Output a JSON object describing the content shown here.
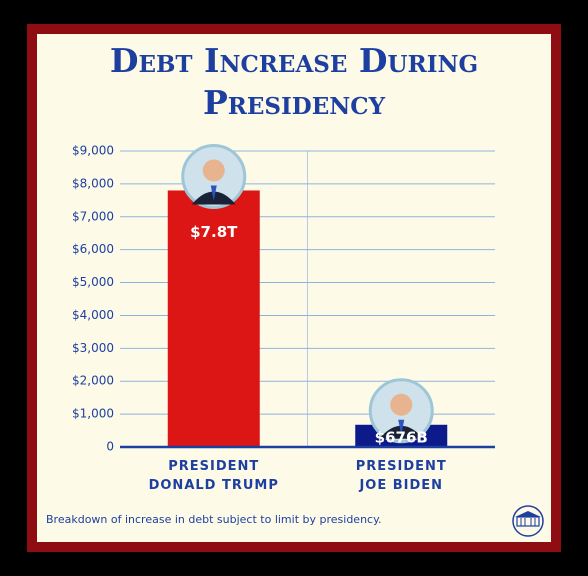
{
  "chart_data": {
    "type": "bar",
    "title": "Debt Increase During Presidency",
    "categories": [
      "PRESIDENT\nDONALD TRUMP",
      "PRESIDENT\nJOE BIDEN"
    ],
    "values": [
      7800,
      676
    ],
    "value_labels": [
      "$7.8T",
      "$676B"
    ],
    "colors": [
      "#dc1515",
      "#0d1a8a"
    ],
    "ylim": [
      0,
      9000
    ],
    "yticks": [
      0,
      {
        "value": 1000,
        "label": "$1,000"
      },
      {
        "value": 2000,
        "label": "$2,000"
      },
      {
        "value": 3000,
        "label": "$3,000"
      },
      {
        "value": 4000,
        "label": "$4,000"
      },
      {
        "value": 5000,
        "label": "$5,000"
      },
      {
        "value": 6000,
        "label": "$6,000"
      },
      {
        "value": 7000,
        "label": "$7,000"
      },
      {
        "value": 8000,
        "label": "$8,000"
      },
      {
        "value": 9000,
        "label": "$9,000"
      }
    ],
    "grid": true,
    "caption": "Breakdown of increase in debt subject to limit by presidency."
  }
}
